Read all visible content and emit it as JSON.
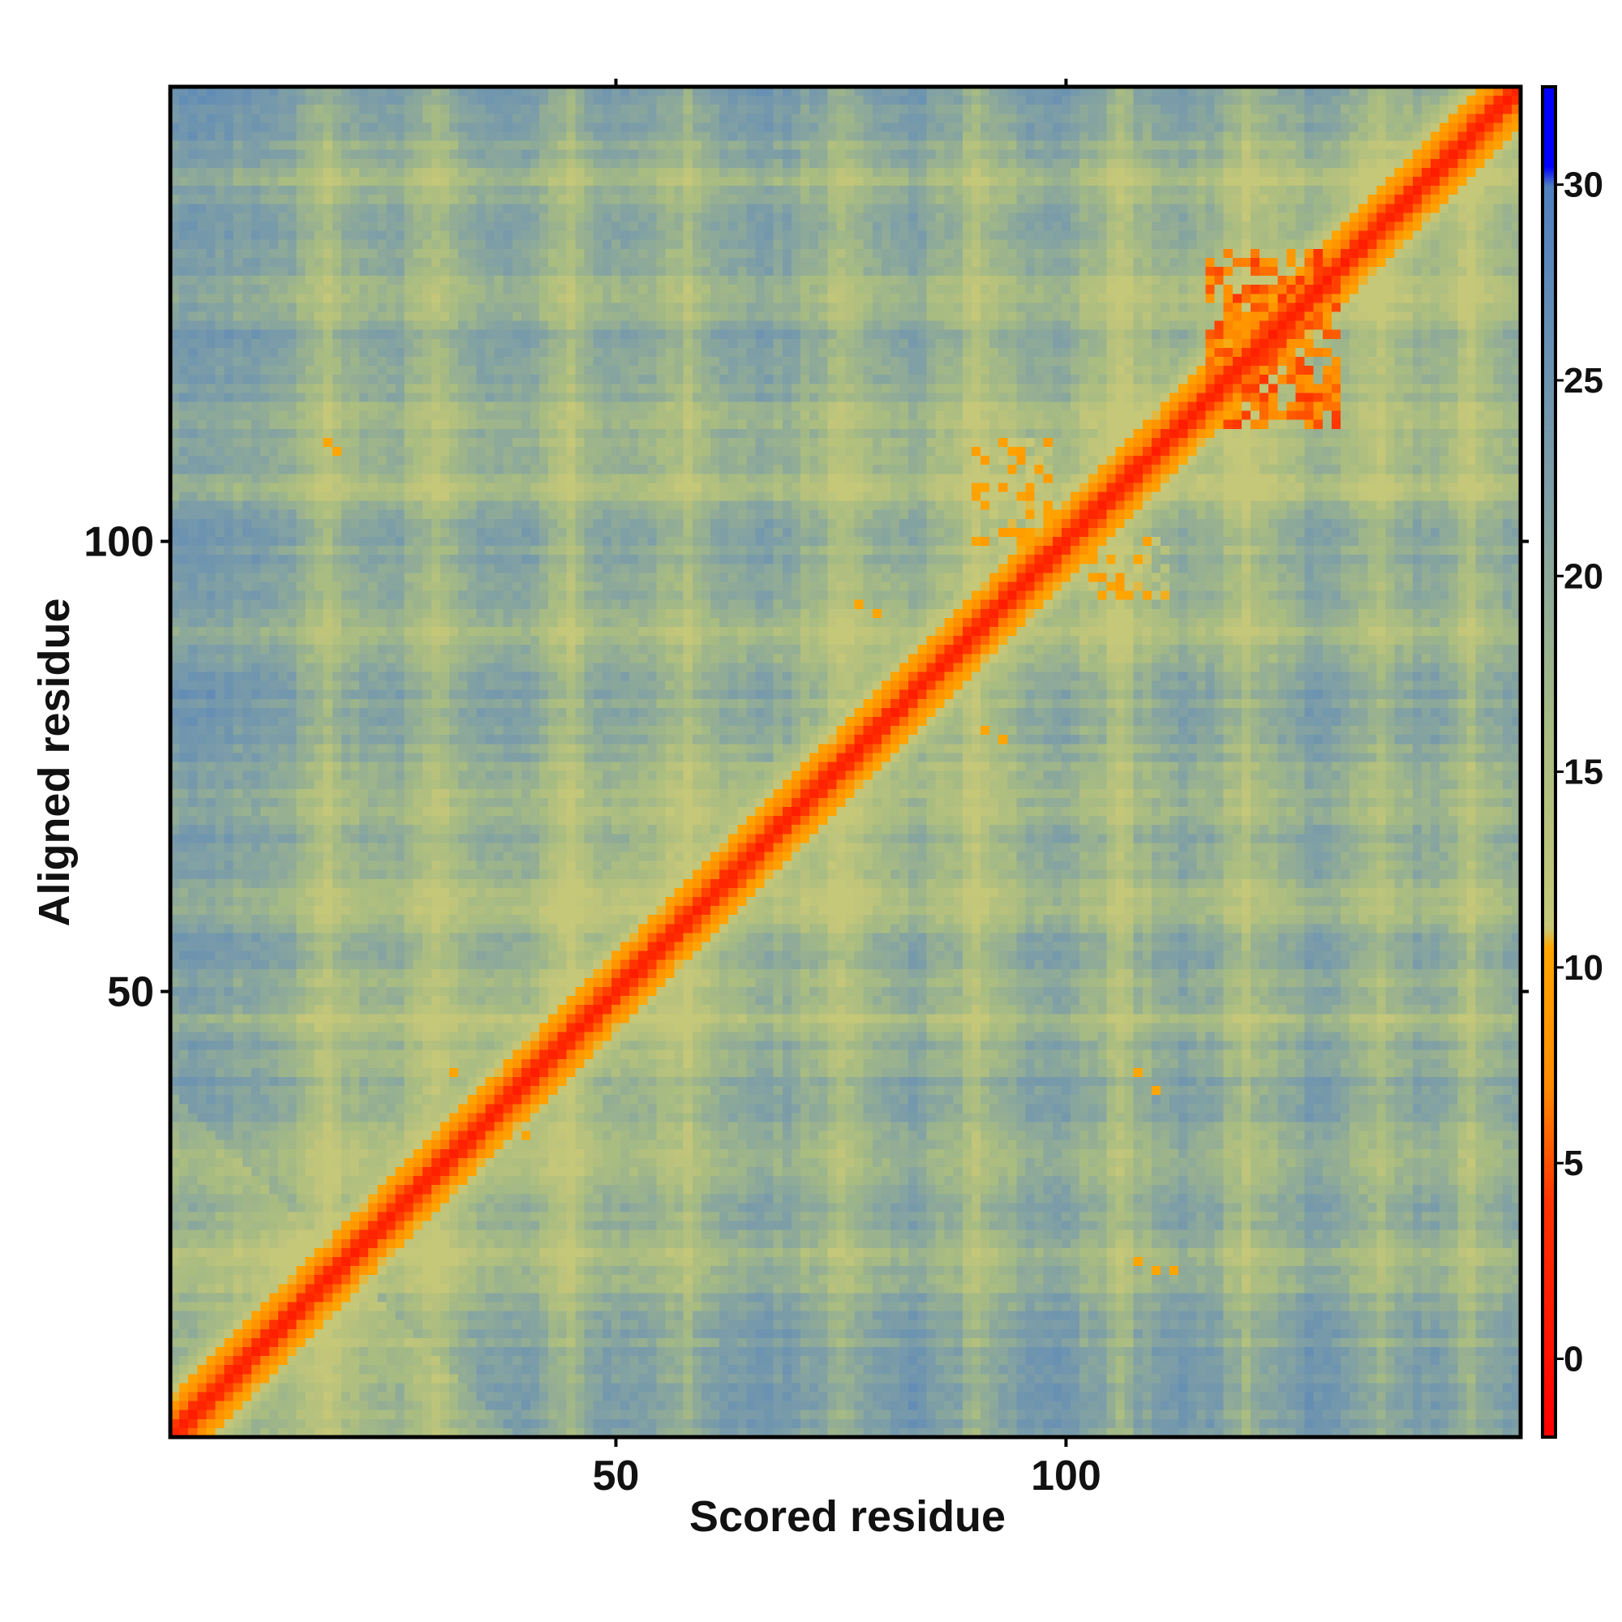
{
  "chart_data": {
    "type": "heatmap",
    "title": "",
    "xlabel": "Scored residue",
    "ylabel": "Aligned residue",
    "xlim": [
      1,
      150
    ],
    "ylim": [
      1,
      150
    ],
    "x_ticks": [
      50,
      100
    ],
    "y_ticks": [
      50,
      100
    ],
    "colorbar": {
      "range": [
        -2,
        32.5
      ],
      "ticks": [
        0,
        5,
        10,
        15,
        20,
        25,
        30
      ],
      "palette": [
        {
          "value": -2,
          "color": "#ff0000"
        },
        {
          "value": 4,
          "color": "#ff3300"
        },
        {
          "value": 7,
          "color": "#ff8c00"
        },
        {
          "value": 10.5,
          "color": "#ffa500"
        },
        {
          "value": 11,
          "color": "#c8c878"
        },
        {
          "value": 16,
          "color": "#a8bc82"
        },
        {
          "value": 22,
          "color": "#7f9fa6"
        },
        {
          "value": 30,
          "color": "#4f80bf"
        },
        {
          "value": 30.5,
          "color": "#0000ff"
        },
        {
          "value": 32.5,
          "color": "#0000ff"
        }
      ]
    },
    "description_of_values": "Predicted aligned error matrix; low values (red) along the diagonal, orange blocks near residues 110-130, high values (blue) off-diagonal",
    "diagonal_low_error_band": {
      "from_residue": 1,
      "to_residue": 150,
      "core_value": 1
    },
    "domain_blocks": [
      {
        "x": [
          116,
          130
        ],
        "y": [
          113,
          132
        ],
        "value": 4
      },
      {
        "x": [
          90,
          98
        ],
        "y": [
          100,
          111
        ],
        "value": 9
      },
      {
        "x": [
          103,
          111
        ],
        "y": [
          94,
          100
        ],
        "value": 9
      }
    ],
    "isolated_orange_cells": [
      [
        18,
        111
      ],
      [
        19,
        110
      ],
      [
        77,
        93
      ],
      [
        79,
        92
      ],
      [
        91,
        79
      ],
      [
        93,
        78
      ],
      [
        108,
        20
      ],
      [
        110,
        19
      ],
      [
        112,
        19
      ],
      [
        108,
        41
      ],
      [
        110,
        39
      ],
      [
        32,
        41
      ],
      [
        40,
        34
      ]
    ]
  }
}
